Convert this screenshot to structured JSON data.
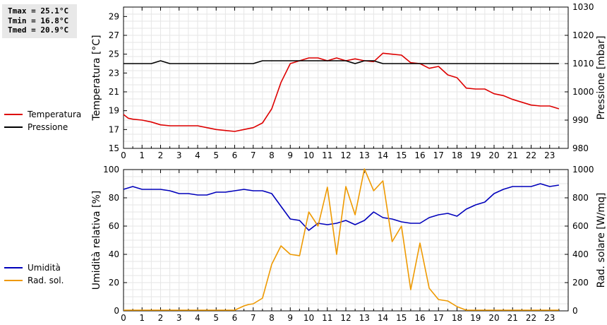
{
  "stats": {
    "tmax": "Tmax = 25.1°C",
    "tmin": "Tmin = 16.8°C",
    "tmed": "Tmed = 20.9°C"
  },
  "legend_top": [
    {
      "label": "Temperatura",
      "color": "#dd0000"
    },
    {
      "label": "Pressione",
      "color": "#000000"
    }
  ],
  "legend_bottom": [
    {
      "label": "Umidità",
      "color": "#0000bb"
    },
    {
      "label": "Rad. sol.",
      "color": "#ee9900"
    }
  ],
  "chart_data": [
    {
      "type": "line",
      "y_left_label": "Temperatura [°C]",
      "y_right_label": "Pressione [mbar]",
      "x_ticks": [
        "0",
        "1",
        "2",
        "3",
        "4",
        "5",
        "6",
        "7",
        "8",
        "9",
        "10",
        "11",
        "12",
        "13",
        "14",
        "15",
        "16",
        "17",
        "18",
        "19",
        "20",
        "21",
        "22",
        "23"
      ],
      "y_left_ticks": [
        "15",
        "17",
        "19",
        "21",
        "23",
        "25",
        "27",
        "29"
      ],
      "y_right_ticks": [
        "980",
        "990",
        "1000",
        "1010",
        "1020",
        "1030"
      ],
      "xlim": [
        0,
        24
      ],
      "y_left_lim": [
        15,
        30
      ],
      "y_right_lim": [
        980,
        1030
      ],
      "grid": true,
      "series": [
        {
          "name": "Temperatura",
          "axis": "left",
          "color": "#dd0000",
          "x": [
            0,
            0.25,
            0.5,
            1,
            1.5,
            2,
            2.5,
            3,
            3.5,
            4,
            4.5,
            5,
            5.5,
            6,
            6.5,
            7,
            7.5,
            8,
            8.5,
            9,
            9.5,
            10,
            10.5,
            11,
            11.5,
            12,
            12.5,
            13,
            13.5,
            14,
            14.5,
            15,
            15.5,
            16,
            16.5,
            17,
            17.5,
            18,
            18.5,
            19,
            19.5,
            20,
            20.5,
            21,
            21.5,
            22,
            22.5,
            23,
            23.5
          ],
          "y": [
            18.6,
            18.2,
            18.1,
            18.0,
            17.8,
            17.5,
            17.4,
            17.4,
            17.4,
            17.4,
            17.2,
            17.0,
            16.9,
            16.8,
            17.0,
            17.2,
            17.7,
            19.2,
            22.0,
            24.0,
            24.3,
            24.6,
            24.6,
            24.3,
            24.6,
            24.3,
            24.5,
            24.3,
            24.2,
            25.1,
            25.0,
            24.9,
            24.1,
            24.0,
            23.5,
            23.7,
            22.8,
            22.5,
            21.4,
            21.3,
            21.3,
            20.8,
            20.6,
            20.2,
            19.9,
            19.6,
            19.5,
            19.5,
            19.2
          ]
        },
        {
          "name": "Pressione",
          "axis": "right",
          "color": "#000000",
          "x": [
            0,
            0.5,
            1,
            1.5,
            2,
            2.5,
            3,
            4,
            5,
            6,
            6.5,
            7,
            7.5,
            8,
            9,
            10,
            11,
            12,
            12.5,
            13,
            13.5,
            14,
            15,
            16,
            17,
            18,
            19,
            20,
            21,
            22,
            23,
            23.5
          ],
          "y": [
            1010,
            1010,
            1010,
            1010,
            1011,
            1010,
            1010,
            1010,
            1010,
            1010,
            1010,
            1010,
            1011,
            1011,
            1011,
            1011,
            1011,
            1011,
            1010,
            1011,
            1011,
            1010,
            1010,
            1010,
            1010,
            1010,
            1010,
            1010,
            1010,
            1010,
            1010,
            1010
          ]
        }
      ]
    },
    {
      "type": "line",
      "y_left_label": "Umidità relativa [%]",
      "y_right_label": "Rad. solare [W/mq]",
      "x_ticks": [
        "0",
        "1",
        "2",
        "3",
        "4",
        "5",
        "6",
        "7",
        "8",
        "9",
        "10",
        "11",
        "12",
        "13",
        "14",
        "15",
        "16",
        "17",
        "18",
        "19",
        "20",
        "21",
        "22",
        "23"
      ],
      "y_left_ticks": [
        "0",
        "20",
        "40",
        "60",
        "80",
        "100"
      ],
      "y_right_ticks": [
        "0",
        "200",
        "400",
        "600",
        "800",
        "1000"
      ],
      "xlim": [
        0,
        24
      ],
      "y_left_lim": [
        0,
        100
      ],
      "y_right_lim": [
        0,
        1000
      ],
      "grid": true,
      "series": [
        {
          "name": "Umidità",
          "axis": "left",
          "color": "#0000bb",
          "x": [
            0,
            0.5,
            1,
            1.5,
            2,
            2.5,
            3,
            3.5,
            4,
            4.5,
            5,
            5.5,
            6,
            6.5,
            7,
            7.5,
            8,
            8.5,
            9,
            9.5,
            10,
            10.5,
            11,
            11.5,
            12,
            12.5,
            13,
            13.5,
            14,
            14.5,
            15,
            15.5,
            16,
            16.5,
            17,
            17.5,
            18,
            18.5,
            19,
            19.5,
            20,
            20.5,
            21,
            21.5,
            22,
            22.5,
            23,
            23.5
          ],
          "y": [
            86,
            88,
            86,
            86,
            86,
            85,
            83,
            83,
            82,
            82,
            84,
            84,
            85,
            86,
            85,
            85,
            83,
            74,
            65,
            64,
            57,
            62,
            61,
            62,
            64,
            61,
            64,
            70,
            66,
            65,
            63,
            62,
            62,
            66,
            68,
            69,
            67,
            72,
            75,
            77,
            83,
            86,
            88,
            88,
            88,
            90,
            88,
            89
          ]
        },
        {
          "name": "Rad. sol.",
          "axis": "right",
          "color": "#ee9900",
          "x": [
            0,
            0.5,
            1,
            1.5,
            2,
            2.5,
            3,
            3.5,
            4,
            4.5,
            5,
            5.5,
            6,
            6.5,
            6.75,
            7,
            7.5,
            8,
            8.5,
            9,
            9.5,
            10,
            10.5,
            11,
            11.5,
            12,
            12.5,
            13,
            13.5,
            14,
            14.5,
            15,
            15.5,
            16,
            16.5,
            17,
            17.5,
            18,
            18.5,
            19,
            19.5,
            20,
            20.5,
            21,
            21.5,
            22,
            22.5,
            23,
            23.5
          ],
          "y": [
            5,
            5,
            5,
            5,
            5,
            5,
            5,
            5,
            5,
            5,
            5,
            5,
            5,
            35,
            45,
            50,
            90,
            330,
            460,
            400,
            390,
            700,
            600,
            875,
            400,
            880,
            680,
            1005,
            850,
            920,
            490,
            600,
            150,
            480,
            160,
            80,
            70,
            30,
            5,
            5,
            5,
            5,
            5,
            5,
            5,
            5,
            5,
            5,
            5
          ]
        }
      ]
    }
  ]
}
